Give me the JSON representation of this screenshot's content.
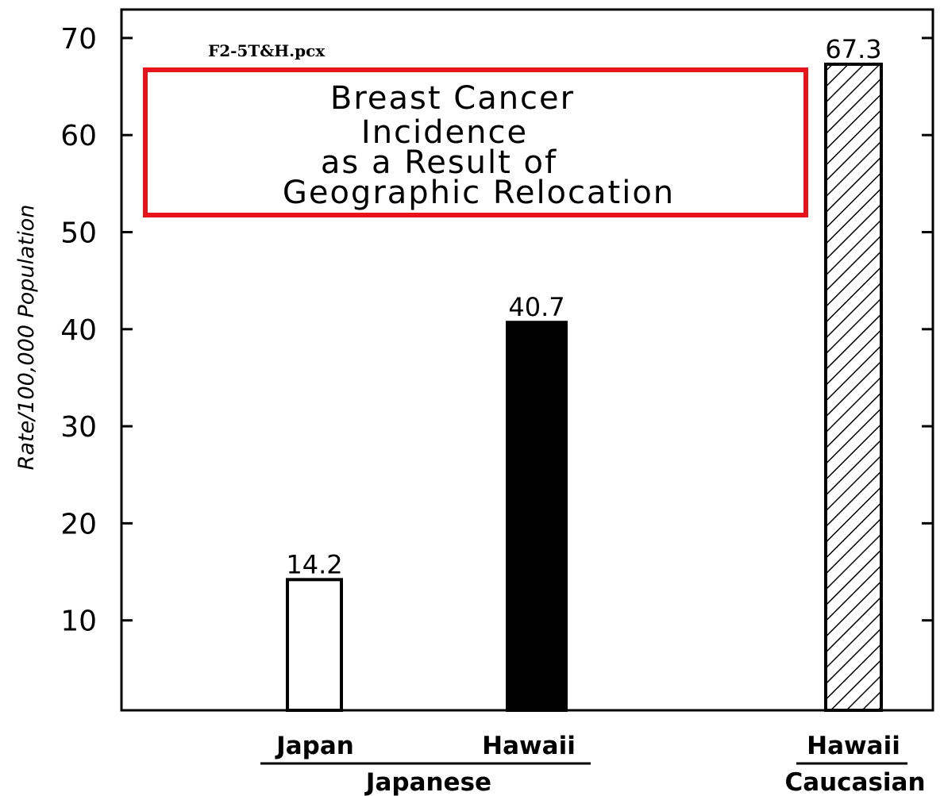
{
  "file_label": "F2-5T&H.pcx",
  "colors": {
    "title_box_border": "#e8141c",
    "file_label": "#1a35d6",
    "bar_stroke": "#000000",
    "japan_fill": "#ffffff",
    "hawaii_japanese_fill": "#000000",
    "hawaii_caucasian_fill": "hatched"
  },
  "chart_data": {
    "type": "bar",
    "title": "Breast Cancer Incidence as a Result of Geographic Relocation",
    "title_lines": [
      "Breast Cancer",
      "Incidence",
      "as a Result of",
      "Geographic Relocation"
    ],
    "ylabel": "Rate/100,000 Population",
    "xlabel": "",
    "ylim": [
      0,
      72
    ],
    "yticks": [
      10,
      20,
      30,
      40,
      50,
      60,
      70
    ],
    "grid": false,
    "categories": [
      "Japan",
      "Hawaii",
      "Hawaii"
    ],
    "values": [
      14.2,
      40.7,
      67.3
    ],
    "value_labels": [
      "14.2",
      "40.7",
      "67.3"
    ],
    "groups": [
      {
        "name": "Japanese",
        "members": [
          "Japan",
          "Hawaii"
        ]
      },
      {
        "name": "Caucasian",
        "members": [
          "Hawaii"
        ]
      }
    ]
  }
}
